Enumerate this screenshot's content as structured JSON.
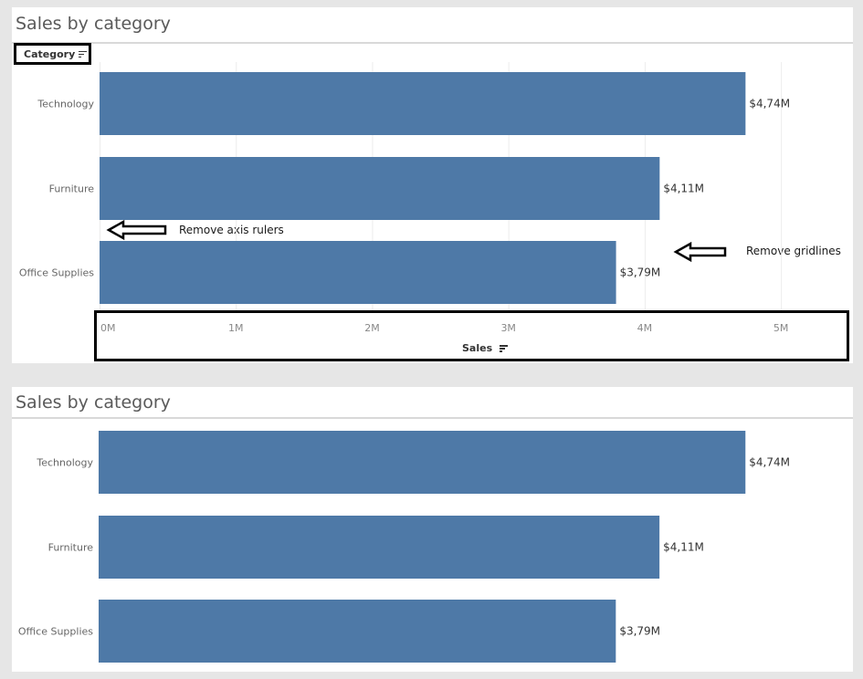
{
  "panels": [
    {
      "title": "Sales by category",
      "category_header": "Category",
      "axis_title": "Sales",
      "annotations": [
        "Remove axis rulers",
        "Remove gridlines"
      ]
    },
    {
      "title": "Sales by category"
    }
  ],
  "chart_data": [
    {
      "type": "bar",
      "orientation": "horizontal",
      "title": "Sales by category",
      "categories": [
        "Technology",
        "Furniture",
        "Office Supplies"
      ],
      "values": [
        4740000,
        4110000,
        3790000
      ],
      "data_labels": [
        "$4,74M",
        "$4,11M",
        "$3,79M"
      ],
      "xlabel": "Sales",
      "ylabel": "Category",
      "xlim": [
        0,
        5200000
      ],
      "x_ticks": [
        0,
        1000000,
        2000000,
        3000000,
        4000000,
        5000000
      ],
      "x_tick_labels": [
        "0M",
        "1M",
        "2M",
        "3M",
        "4M",
        "5M"
      ],
      "grid": true,
      "bar_color": "#4e79a7"
    },
    {
      "type": "bar",
      "orientation": "horizontal",
      "title": "Sales by category",
      "categories": [
        "Technology",
        "Furniture",
        "Office Supplies"
      ],
      "values": [
        4740000,
        4110000,
        3790000
      ],
      "data_labels": [
        "$4,74M",
        "$4,11M",
        "$3,79M"
      ],
      "xlim": [
        0,
        5200000
      ],
      "grid": false,
      "bar_color": "#4e79a7"
    }
  ]
}
